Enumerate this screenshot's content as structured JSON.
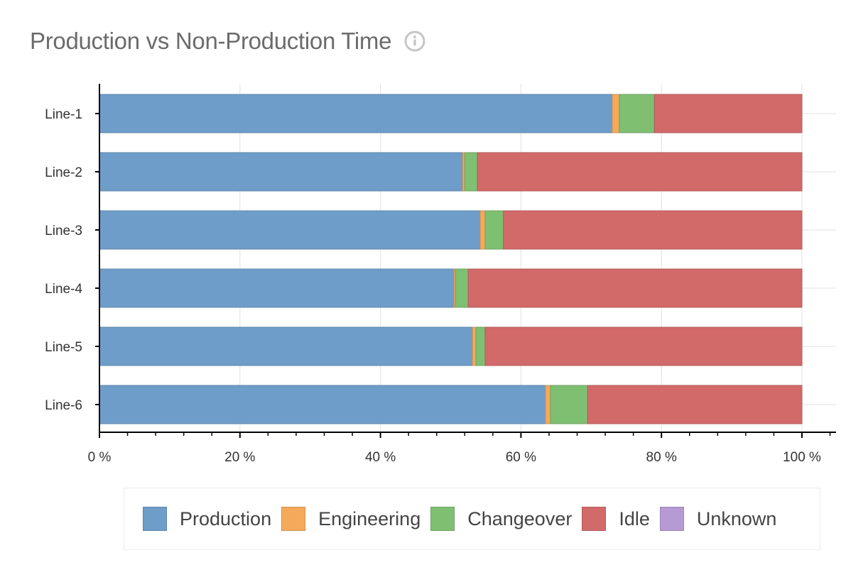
{
  "header": {
    "title": "Production vs Non-Production Time",
    "info_icon": "info-circle-icon"
  },
  "colors": {
    "Production": "#6f9dc9",
    "Engineering": "#f4a95b",
    "Changeover": "#7fbf72",
    "Idle": "#d26a69",
    "Unknown": "#b59ad4"
  },
  "chart_data": {
    "type": "bar",
    "orientation": "horizontal",
    "stacked": true,
    "categories": [
      "Line-1",
      "Line-2",
      "Line-3",
      "Line-4",
      "Line-5",
      "Line-6"
    ],
    "series": [
      {
        "name": "Production",
        "values": [
          73.0,
          51.7,
          54.2,
          50.5,
          53.1,
          63.5
        ]
      },
      {
        "name": "Engineering",
        "values": [
          1.0,
          0.3,
          0.7,
          0.2,
          0.5,
          0.7
        ]
      },
      {
        "name": "Changeover",
        "values": [
          5.0,
          1.8,
          2.6,
          1.8,
          1.3,
          5.3
        ]
      },
      {
        "name": "Idle",
        "values": [
          21.0,
          46.2,
          42.5,
          47.5,
          45.1,
          30.5
        ]
      },
      {
        "name": "Unknown",
        "values": [
          0,
          0,
          0,
          0,
          0,
          0
        ]
      }
    ],
    "xlim": [
      0,
      100
    ],
    "xticks": [
      0,
      20,
      40,
      60,
      80,
      100
    ],
    "xtick_labels": [
      "0 %",
      "20 %",
      "40 %",
      "60 %",
      "80 %",
      "100 %"
    ],
    "grid": true,
    "legend": "bottom"
  },
  "legend": {
    "items": [
      "Production",
      "Engineering",
      "Changeover",
      "Idle",
      "Unknown"
    ]
  }
}
